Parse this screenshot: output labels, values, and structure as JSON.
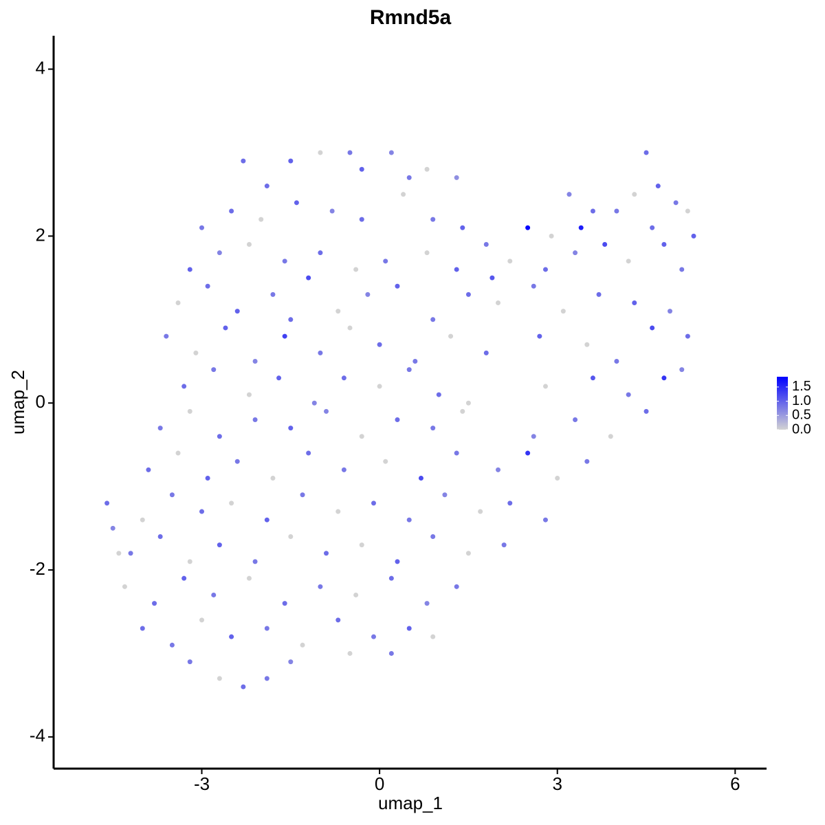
{
  "chart_data": {
    "type": "scatter",
    "title": "Rmnd5a",
    "x_label": "umap_1",
    "y_label": "umap_2",
    "xlim": [
      -5.5,
      6.53
    ],
    "ylim": [
      -4.38,
      4.4
    ],
    "xticks": [
      -3,
      0,
      3,
      6
    ],
    "yticks": [
      -4,
      -2,
      0,
      2,
      4
    ],
    "color_low": "#d3d3d3",
    "color_high": "#0000ff",
    "colorlim": [
      0,
      1.86
    ],
    "colorticks": [
      {
        "value": 0,
        "label": "0.0"
      },
      0.5,
      {
        "value": 1,
        "label": "1.0"
      },
      1.5
    ],
    "x": [
      -2.3,
      -1.5,
      -1.0,
      -0.5,
      0.2,
      0.8,
      1.3,
      -1.9,
      -0.3,
      0.5,
      4.5,
      4.3,
      4.7,
      5.0,
      3.2,
      3.6,
      5.2,
      -3.0,
      -2.5,
      -2.0,
      -1.4,
      -0.8,
      -0.3,
      0.4,
      0.9,
      1.4,
      2.5,
      3.4,
      4.0,
      4.6,
      5.3,
      2.9,
      3.8,
      -3.2,
      -2.7,
      -2.2,
      -1.6,
      -1.0,
      -0.4,
      0.1,
      0.8,
      1.3,
      1.8,
      2.2,
      2.8,
      3.3,
      4.2,
      4.8,
      5.1,
      1.9,
      -3.4,
      -2.9,
      -2.4,
      -1.8,
      -1.2,
      -0.7,
      -0.2,
      0.3,
      0.9,
      1.5,
      2.0,
      2.6,
      3.1,
      3.7,
      4.3,
      4.9,
      -1.5,
      -3.6,
      -3.1,
      -2.6,
      -2.1,
      -1.6,
      -1.0,
      -0.5,
      0.0,
      0.6,
      1.2,
      1.8,
      2.7,
      3.5,
      4.0,
      4.6,
      5.2,
      -3.3,
      -2.8,
      -2.2,
      -1.7,
      -1.1,
      -0.6,
      0.0,
      0.5,
      1.0,
      1.5,
      3.6,
      4.2,
      4.8,
      5.1,
      2.8,
      -3.7,
      -3.2,
      -2.7,
      -2.1,
      -1.5,
      -0.9,
      -0.3,
      0.3,
      0.9,
      1.4,
      2.6,
      3.3,
      3.9,
      4.5,
      -3.9,
      -3.4,
      -2.9,
      -2.4,
      -1.8,
      -1.2,
      -0.6,
      0.1,
      0.7,
      1.3,
      2.0,
      2.5,
      3.0,
      3.5,
      -4.6,
      -4.0,
      -3.5,
      -3.0,
      -2.5,
      -1.9,
      -1.3,
      -0.7,
      -0.1,
      0.5,
      1.1,
      1.7,
      2.2,
      2.8,
      -4.5,
      -4.2,
      -3.7,
      -3.2,
      -2.7,
      -2.1,
      -1.5,
      -0.9,
      -0.3,
      0.3,
      0.9,
      1.5,
      2.1,
      -4.4,
      -4.3,
      -3.8,
      -3.3,
      -2.8,
      -2.2,
      -1.6,
      -1.0,
      -0.4,
      0.2,
      0.8,
      1.3,
      -4.0,
      -3.5,
      -3.0,
      -2.5,
      -1.9,
      -1.3,
      -0.7,
      -0.1,
      0.5,
      0.9,
      -3.2,
      -2.7,
      -2.3,
      -1.9,
      -1.5,
      -0.5,
      0.2
    ],
    "y": [
      2.9,
      2.9,
      3.0,
      3.0,
      3.0,
      2.8,
      2.7,
      2.6,
      2.8,
      2.7,
      3.0,
      2.5,
      2.6,
      2.4,
      2.5,
      2.3,
      2.3,
      2.1,
      2.3,
      2.2,
      2.4,
      2.3,
      2.2,
      2.5,
      2.2,
      2.1,
      2.1,
      2.1,
      2.3,
      2.1,
      2.0,
      2.0,
      1.9,
      1.6,
      1.8,
      1.9,
      1.7,
      1.8,
      1.6,
      1.7,
      1.8,
      1.6,
      1.9,
      1.7,
      1.6,
      1.8,
      1.7,
      1.9,
      1.6,
      1.5,
      1.2,
      1.4,
      1.1,
      1.3,
      1.5,
      1.1,
      1.3,
      1.4,
      1.0,
      1.3,
      1.2,
      1.4,
      1.1,
      1.3,
      1.2,
      1.1,
      1.0,
      0.8,
      0.6,
      0.9,
      0.5,
      0.8,
      0.6,
      0.9,
      0.7,
      0.5,
      0.8,
      0.6,
      0.8,
      0.7,
      0.5,
      0.9,
      0.8,
      0.2,
      0.4,
      0.1,
      0.3,
      0.0,
      0.3,
      0.2,
      0.4,
      0.1,
      0.0,
      0.3,
      0.1,
      0.3,
      0.4,
      0.2,
      -0.3,
      -0.1,
      -0.4,
      -0.2,
      -0.3,
      -0.1,
      -0.4,
      -0.2,
      -0.3,
      -0.1,
      -0.4,
      -0.2,
      -0.4,
      -0.1,
      -0.8,
      -0.6,
      -0.9,
      -0.7,
      -0.9,
      -0.6,
      -0.8,
      -0.7,
      -0.9,
      -0.6,
      -0.8,
      -0.6,
      -0.9,
      -0.7,
      -1.2,
      -1.4,
      -1.1,
      -1.3,
      -1.2,
      -1.4,
      -1.1,
      -1.3,
      -1.2,
      -1.4,
      -1.1,
      -1.3,
      -1.2,
      -1.4,
      -1.5,
      -1.8,
      -1.6,
      -1.9,
      -1.7,
      -1.9,
      -1.6,
      -1.8,
      -1.7,
      -1.9,
      -1.6,
      -1.8,
      -1.7,
      -1.8,
      -2.2,
      -2.4,
      -2.1,
      -2.3,
      -2.1,
      -2.4,
      -2.2,
      -2.3,
      -2.1,
      -2.4,
      -2.2,
      -2.7,
      -2.9,
      -2.6,
      -2.8,
      -2.7,
      -2.9,
      -2.6,
      -2.8,
      -2.7,
      -2.8,
      -3.1,
      -3.3,
      -3.4,
      -3.3,
      -3.1,
      -3.0,
      -3.0
    ],
    "values": [
      0.9,
      1.0,
      0,
      0.8,
      0.7,
      0,
      0.6,
      0.9,
      1.0,
      0.8,
      0.9,
      0,
      1.0,
      0.8,
      0.7,
      0.9,
      0,
      0.8,
      0.9,
      0,
      1.0,
      0.7,
      0.9,
      0,
      0.8,
      1.0,
      1.8,
      1.6,
      0.8,
      0.9,
      1.0,
      0,
      1.2,
      1.0,
      0.7,
      0,
      0.8,
      0.9,
      0,
      0.8,
      0,
      1.0,
      0.8,
      0,
      0.9,
      0.7,
      0,
      1.0,
      0.8,
      1.1,
      0,
      0.9,
      1.0,
      0.8,
      1.2,
      0,
      0.7,
      1.0,
      0.8,
      0.9,
      0,
      0.8,
      0,
      0.9,
      1.0,
      0.7,
      0.9,
      0.8,
      0,
      1.0,
      0.7,
      1.3,
      0.8,
      0,
      0.9,
      0.8,
      0,
      0.9,
      1.0,
      0,
      0.8,
      1.2,
      0.9,
      0.9,
      0.8,
      0,
      1.0,
      0.7,
      0.9,
      0,
      0.8,
      0.9,
      0,
      1.1,
      0.8,
      1.4,
      0.7,
      0,
      0.8,
      0,
      0.9,
      0.8,
      1.0,
      0.7,
      0,
      0.9,
      0.8,
      0,
      0.7,
      0.8,
      0,
      0.9,
      0.9,
      0,
      1.0,
      0.8,
      0,
      0.9,
      0.8,
      0,
      1.2,
      0.8,
      0.7,
      1.4,
      0,
      0.8,
      0.9,
      0,
      0.8,
      0.9,
      0,
      1.0,
      0.8,
      0,
      0.9,
      0.8,
      0.7,
      0,
      0.9,
      0.8,
      0.7,
      0.8,
      0.9,
      0,
      1.0,
      0.8,
      0,
      0.9,
      0,
      1.0,
      0.8,
      0,
      0.8,
      0,
      0,
      0.9,
      1.0,
      0.8,
      0,
      0.9,
      0.8,
      0,
      0.9,
      0.7,
      0.8,
      0.9,
      0.8,
      0,
      1.0,
      0.8,
      0,
      0.9,
      0.8,
      1.0,
      0,
      0.8,
      0,
      0.9,
      0.8,
      0.7,
      0,
      0.8
    ]
  }
}
